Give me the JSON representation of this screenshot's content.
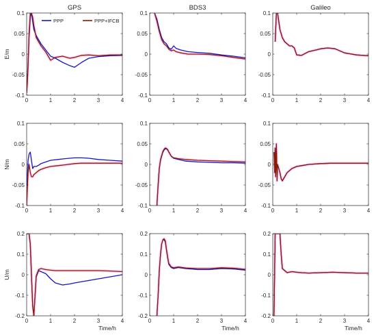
{
  "figure": {
    "columns": [
      "GPS",
      "BDS3",
      "Galileo"
    ],
    "row_labels": [
      "E/m",
      "N/m",
      "U/m"
    ],
    "xlabel": "Time/h"
  },
  "legend": {
    "placement": "top-right of first panel",
    "entries": [
      {
        "name": "PPP",
        "color": "#1515c8"
      },
      {
        "name": "PPP+IFCB",
        "color": "#8b1a00"
      }
    ]
  },
  "colors": {
    "ppp": "#1515c8",
    "ifcb": "#8b1a00",
    "spread": "#ffb3f0"
  },
  "chart_data": [
    {
      "type": "line",
      "title": "GPS",
      "ylabel": "E/m",
      "xlabel": "",
      "xlim": [
        0,
        4
      ],
      "ylim": [
        -0.1,
        0.1
      ],
      "xticks": [
        "0",
        "1",
        "2",
        "3",
        "4"
      ],
      "yticks": [
        "-0.1",
        "-0.05",
        "0",
        "0.05",
        "0.1"
      ],
      "series": [
        {
          "name": "PPP",
          "x": [
            0,
            0.03,
            0.06,
            0.1,
            0.15,
            0.2,
            0.25,
            0.3,
            0.4,
            0.5,
            0.6,
            0.8,
            1.0,
            1.2,
            1.5,
            1.8,
            2.0,
            2.3,
            2.6,
            3.0,
            3.5,
            4.0
          ],
          "y": [
            -0.09,
            -0.06,
            -0.02,
            0.04,
            0.09,
            0.1,
            0.08,
            0.06,
            0.045,
            0.035,
            0.025,
            0.01,
            -0.005,
            -0.01,
            -0.02,
            -0.028,
            -0.032,
            -0.02,
            -0.01,
            -0.006,
            -0.004,
            -0.003
          ]
        },
        {
          "name": "PPP+IFCB",
          "x": [
            0,
            0.03,
            0.06,
            0.1,
            0.15,
            0.2,
            0.25,
            0.3,
            0.4,
            0.5,
            0.6,
            0.8,
            1.0,
            1.2,
            1.5,
            1.8,
            2.0,
            2.3,
            2.6,
            3.0,
            3.5,
            4.0
          ],
          "y": [
            -0.095,
            -0.07,
            -0.03,
            0.05,
            0.1,
            0.1,
            0.09,
            0.07,
            0.04,
            0.03,
            0.02,
            0.005,
            -0.015,
            -0.008,
            -0.005,
            -0.01,
            -0.008,
            -0.003,
            -0.002,
            -0.004,
            -0.002,
            -0.002
          ]
        }
      ]
    },
    {
      "type": "line",
      "title": "BDS3",
      "ylabel": "",
      "xlabel": "",
      "xlim": [
        0,
        4
      ],
      "ylim": [
        -0.1,
        0.1
      ],
      "xticks": [
        "0",
        "1",
        "2",
        "3",
        "4"
      ],
      "yticks": [
        "-0.1",
        "-0.05",
        "0",
        "0.05",
        "0.1"
      ],
      "series": [
        {
          "name": "PPP",
          "x": [
            0.2,
            0.3,
            0.4,
            0.5,
            0.6,
            0.7,
            0.8,
            0.9,
            1.0,
            1.1,
            1.3,
            1.6,
            2.0,
            2.5,
            3.0,
            3.5,
            4.0
          ],
          "y": [
            0.1,
            0.085,
            0.06,
            0.04,
            0.03,
            0.025,
            0.015,
            0.012,
            0.02,
            0.014,
            0.01,
            0.006,
            0.004,
            0.002,
            -0.002,
            -0.005,
            -0.009
          ]
        },
        {
          "name": "PPP+IFCB",
          "x": [
            0.2,
            0.3,
            0.4,
            0.5,
            0.6,
            0.7,
            0.8,
            0.9,
            1.0,
            1.1,
            1.3,
            1.6,
            2.0,
            2.5,
            3.0,
            3.5,
            4.0
          ],
          "y": [
            0.1,
            0.08,
            0.055,
            0.035,
            0.025,
            0.02,
            0.012,
            0.008,
            0.01,
            0.006,
            0.003,
            0.0,
            0.0,
            -0.001,
            -0.004,
            -0.008,
            -0.012
          ]
        }
      ]
    },
    {
      "type": "line",
      "title": "Galileo",
      "ylabel": "",
      "xlabel": "",
      "xlim": [
        0,
        4
      ],
      "ylim": [
        -0.1,
        0.1
      ],
      "xticks": [
        "0",
        "1",
        "2",
        "3",
        "4"
      ],
      "yticks": [
        "-0.1",
        "-0.05",
        "0",
        "0.05",
        "0.1"
      ],
      "series": [
        {
          "name": "PPP",
          "x": [
            0.1,
            0.15,
            0.2,
            0.3,
            0.4,
            0.5,
            0.6,
            0.7,
            0.8,
            0.9,
            1.0,
            1.2,
            1.5,
            1.8,
            2.0,
            2.3,
            2.6,
            3.0,
            3.5,
            4.0
          ],
          "y": [
            0.03,
            0.1,
            0.1,
            0.06,
            0.04,
            0.03,
            0.025,
            0.02,
            0.02,
            0.015,
            -0.002,
            -0.003,
            0.006,
            0.01,
            0.013,
            0.015,
            0.013,
            0.003,
            -0.002,
            -0.004
          ]
        },
        {
          "name": "PPP+IFCB",
          "x": [
            0.1,
            0.15,
            0.2,
            0.3,
            0.4,
            0.5,
            0.6,
            0.7,
            0.8,
            0.9,
            1.0,
            1.2,
            1.5,
            1.8,
            2.0,
            2.3,
            2.6,
            3.0,
            3.5,
            4.0
          ],
          "y": [
            0.03,
            0.1,
            0.1,
            0.06,
            0.04,
            0.03,
            0.025,
            0.02,
            0.02,
            0.015,
            -0.002,
            -0.003,
            0.006,
            0.01,
            0.013,
            0.015,
            0.013,
            0.003,
            -0.002,
            -0.004
          ]
        }
      ]
    },
    {
      "type": "line",
      "title": "",
      "ylabel": "N/m",
      "xlabel": "",
      "xlim": [
        0,
        4
      ],
      "ylim": [
        -0.1,
        0.1
      ],
      "xticks": [
        "0",
        "1",
        "2",
        "3",
        "4"
      ],
      "yticks": [
        "-0.1",
        "-0.05",
        "0",
        "0.05",
        "0.1"
      ],
      "series": [
        {
          "name": "PPP",
          "x": [
            0,
            0.03,
            0.06,
            0.1,
            0.15,
            0.2,
            0.25,
            0.3,
            0.4,
            0.5,
            0.6,
            0.8,
            1.0,
            1.3,
            1.6,
            2.0,
            2.3,
            2.6,
            3.0,
            3.5,
            4.0
          ],
          "y": [
            -0.07,
            -0.03,
            0.01,
            0.025,
            0.03,
            0.01,
            -0.01,
            -0.005,
            -0.005,
            -0.002,
            0.002,
            0.006,
            0.01,
            0.012,
            0.014,
            0.016,
            0.016,
            0.015,
            0.012,
            0.01,
            0.008
          ]
        },
        {
          "name": "PPP+IFCB",
          "x": [
            0,
            0.03,
            0.06,
            0.1,
            0.15,
            0.2,
            0.25,
            0.3,
            0.4,
            0.5,
            0.6,
            0.8,
            1.0,
            1.3,
            1.6,
            2.0,
            2.3,
            2.6,
            3.0,
            3.5,
            4.0
          ],
          "y": [
            -0.1,
            -0.06,
            -0.02,
            0.0,
            -0.02,
            -0.03,
            -0.03,
            -0.025,
            -0.02,
            -0.015,
            -0.012,
            -0.008,
            -0.005,
            -0.003,
            -0.001,
            0.002,
            0.003,
            0.003,
            0.003,
            0.003,
            0.003
          ]
        }
      ]
    },
    {
      "type": "line",
      "title": "",
      "ylabel": "",
      "xlabel": "",
      "xlim": [
        0,
        4
      ],
      "ylim": [
        -0.1,
        0.1
      ],
      "xticks": [
        "0",
        "1",
        "2",
        "3",
        "4"
      ],
      "yticks": [
        "-0.1",
        "-0.05",
        "0",
        "0.05",
        "0.1"
      ],
      "series": [
        {
          "name": "PPP",
          "x": [
            0.3,
            0.35,
            0.4,
            0.45,
            0.5,
            0.55,
            0.6,
            0.65,
            0.7,
            0.75,
            0.8,
            0.9,
            1.0,
            1.2,
            1.5,
            2.0,
            2.5,
            3.0,
            3.5,
            4.0
          ],
          "y": [
            -0.1,
            -0.05,
            -0.01,
            0.01,
            0.02,
            0.03,
            0.035,
            0.038,
            0.038,
            0.035,
            0.03,
            0.02,
            0.015,
            0.012,
            0.008,
            0.006,
            0.005,
            0.004,
            0.004,
            0.003
          ]
        },
        {
          "name": "PPP+IFCB",
          "x": [
            0.3,
            0.35,
            0.4,
            0.45,
            0.5,
            0.55,
            0.6,
            0.65,
            0.7,
            0.75,
            0.8,
            0.9,
            1.0,
            1.2,
            1.5,
            2.0,
            2.5,
            3.0,
            3.5,
            4.0
          ],
          "y": [
            -0.1,
            -0.05,
            -0.01,
            0.012,
            0.022,
            0.032,
            0.037,
            0.04,
            0.039,
            0.036,
            0.03,
            0.02,
            0.016,
            0.014,
            0.012,
            0.01,
            0.009,
            0.008,
            0.007,
            0.006
          ]
        }
      ]
    },
    {
      "type": "line",
      "title": "",
      "ylabel": "",
      "xlabel": "",
      "xlim": [
        0,
        4
      ],
      "ylim": [
        -0.1,
        0.1
      ],
      "xticks": [
        "0",
        "1",
        "2",
        "3",
        "4"
      ],
      "yticks": [
        "-0.1",
        "-0.05",
        "0",
        "0.05",
        "0.1"
      ],
      "series": [
        {
          "name": "PPP",
          "x": [
            0.05,
            0.08,
            0.1,
            0.12,
            0.15,
            0.18,
            0.2,
            0.25,
            0.3,
            0.35,
            0.4,
            0.5,
            0.6,
            0.7,
            0.8,
            1.0,
            1.2,
            1.5,
            2.0,
            2.5,
            3.0,
            3.5,
            4.0
          ],
          "y": [
            0.03,
            -0.02,
            0.04,
            -0.03,
            0.05,
            -0.04,
            0.0,
            -0.01,
            -0.02,
            -0.035,
            -0.04,
            -0.03,
            -0.02,
            -0.015,
            -0.01,
            -0.005,
            -0.003,
            0.0,
            0.002,
            0.003,
            0.003,
            0.003,
            0.003
          ]
        },
        {
          "name": "PPP+IFCB",
          "x": [
            0.05,
            0.08,
            0.1,
            0.12,
            0.15,
            0.18,
            0.2,
            0.25,
            0.3,
            0.35,
            0.4,
            0.5,
            0.6,
            0.7,
            0.8,
            1.0,
            1.2,
            1.5,
            2.0,
            2.5,
            3.0,
            3.5,
            4.0
          ],
          "y": [
            0.03,
            -0.02,
            0.04,
            -0.03,
            0.05,
            -0.04,
            0.0,
            -0.01,
            -0.02,
            -0.035,
            -0.04,
            -0.03,
            -0.02,
            -0.015,
            -0.01,
            -0.005,
            -0.003,
            0.0,
            0.002,
            0.003,
            0.003,
            0.003,
            0.003
          ]
        }
      ]
    },
    {
      "type": "line",
      "title": "",
      "ylabel": "U/m",
      "xlabel": "Time/h",
      "xlim": [
        0,
        4
      ],
      "ylim": [
        -0.2,
        0.2
      ],
      "xticks": [
        "0",
        "1",
        "2",
        "3",
        "4"
      ],
      "yticks": [
        "-0.2",
        "-0.1",
        "0",
        "0.1",
        "0.2"
      ],
      "series": [
        {
          "name": "PPP",
          "x": [
            0,
            0.05,
            0.1,
            0.15,
            0.2,
            0.25,
            0.3,
            0.35,
            0.4,
            0.5,
            0.6,
            0.8,
            1.0,
            1.2,
            1.5,
            1.8,
            2.0,
            2.5,
            3.0,
            3.5,
            4.0
          ],
          "y": [
            0.2,
            0.2,
            0.2,
            0.15,
            0.0,
            -0.15,
            -0.2,
            -0.1,
            -0.01,
            0.02,
            0.015,
            0.005,
            -0.02,
            -0.04,
            -0.05,
            -0.045,
            -0.04,
            -0.03,
            -0.02,
            -0.01,
            0.0
          ]
        },
        {
          "name": "PPP+IFCB",
          "x": [
            0,
            0.05,
            0.1,
            0.15,
            0.2,
            0.25,
            0.3,
            0.35,
            0.4,
            0.5,
            0.6,
            0.8,
            1.0,
            1.2,
            1.5,
            1.8,
            2.0,
            2.5,
            3.0,
            3.5,
            4.0
          ],
          "y": [
            0.2,
            0.2,
            0.2,
            0.15,
            0.0,
            -0.15,
            -0.2,
            -0.1,
            -0.005,
            0.025,
            0.03,
            0.025,
            0.022,
            0.02,
            0.02,
            0.02,
            0.02,
            0.02,
            0.02,
            0.018,
            0.015
          ]
        }
      ]
    },
    {
      "type": "line",
      "title": "",
      "ylabel": "",
      "xlabel": "Time/h",
      "xlim": [
        0,
        4
      ],
      "ylim": [
        -0.2,
        0.2
      ],
      "xticks": [
        "0",
        "1",
        "2",
        "3",
        "4"
      ],
      "yticks": [
        "-0.2",
        "-0.1",
        "0",
        "0.1",
        "0.2"
      ],
      "series": [
        {
          "name": "PPP",
          "x": [
            0.3,
            0.35,
            0.4,
            0.45,
            0.5,
            0.55,
            0.6,
            0.65,
            0.7,
            0.75,
            0.8,
            0.9,
            1.0,
            1.2,
            1.5,
            2.0,
            2.5,
            3.0,
            3.5,
            4.0
          ],
          "y": [
            -0.2,
            -0.1,
            0.02,
            0.1,
            0.15,
            0.17,
            0.17,
            0.16,
            0.12,
            0.08,
            0.05,
            0.035,
            0.03,
            0.035,
            0.03,
            0.025,
            0.025,
            0.03,
            0.028,
            0.022
          ]
        },
        {
          "name": "PPP+IFCB",
          "x": [
            0.3,
            0.35,
            0.4,
            0.45,
            0.5,
            0.55,
            0.6,
            0.65,
            0.7,
            0.75,
            0.8,
            0.9,
            1.0,
            1.2,
            1.5,
            2.0,
            2.5,
            3.0,
            3.5,
            4.0
          ],
          "y": [
            -0.2,
            -0.1,
            0.02,
            0.1,
            0.15,
            0.17,
            0.175,
            0.165,
            0.125,
            0.085,
            0.055,
            0.038,
            0.034,
            0.038,
            0.033,
            0.03,
            0.03,
            0.034,
            0.032,
            0.026
          ]
        }
      ]
    },
    {
      "type": "line",
      "title": "",
      "ylabel": "",
      "xlabel": "Time/h",
      "xlim": [
        0,
        4
      ],
      "ylim": [
        -0.2,
        0.2
      ],
      "xticks": [
        "0",
        "1",
        "2",
        "3",
        "4"
      ],
      "yticks": [
        "-0.2",
        "-0.1",
        "0",
        "0.1",
        "0.2"
      ],
      "series": [
        {
          "name": "PPP",
          "x": [
            0.05,
            0.1,
            0.15,
            0.2,
            0.25,
            0.3,
            0.35,
            0.4,
            0.5,
            0.6,
            0.8,
            1.0,
            1.2,
            1.5,
            2.0,
            2.5,
            3.0,
            3.5,
            4.0
          ],
          "y": [
            -0.2,
            0.2,
            0.2,
            0.2,
            0.2,
            0.2,
            0.1,
            0.03,
            0.02,
            0.01,
            0.015,
            0.012,
            0.01,
            0.008,
            0.01,
            0.012,
            0.01,
            0.008,
            0.008
          ]
        },
        {
          "name": "PPP+IFCB",
          "x": [
            0.05,
            0.1,
            0.15,
            0.2,
            0.25,
            0.3,
            0.35,
            0.4,
            0.5,
            0.6,
            0.8,
            1.0,
            1.2,
            1.5,
            2.0,
            2.5,
            3.0,
            3.5,
            4.0
          ],
          "y": [
            -0.2,
            0.2,
            0.2,
            0.2,
            0.2,
            0.2,
            0.1,
            0.03,
            0.02,
            0.01,
            0.015,
            0.012,
            0.01,
            0.008,
            0.01,
            0.012,
            0.01,
            0.008,
            0.008
          ]
        }
      ]
    }
  ]
}
